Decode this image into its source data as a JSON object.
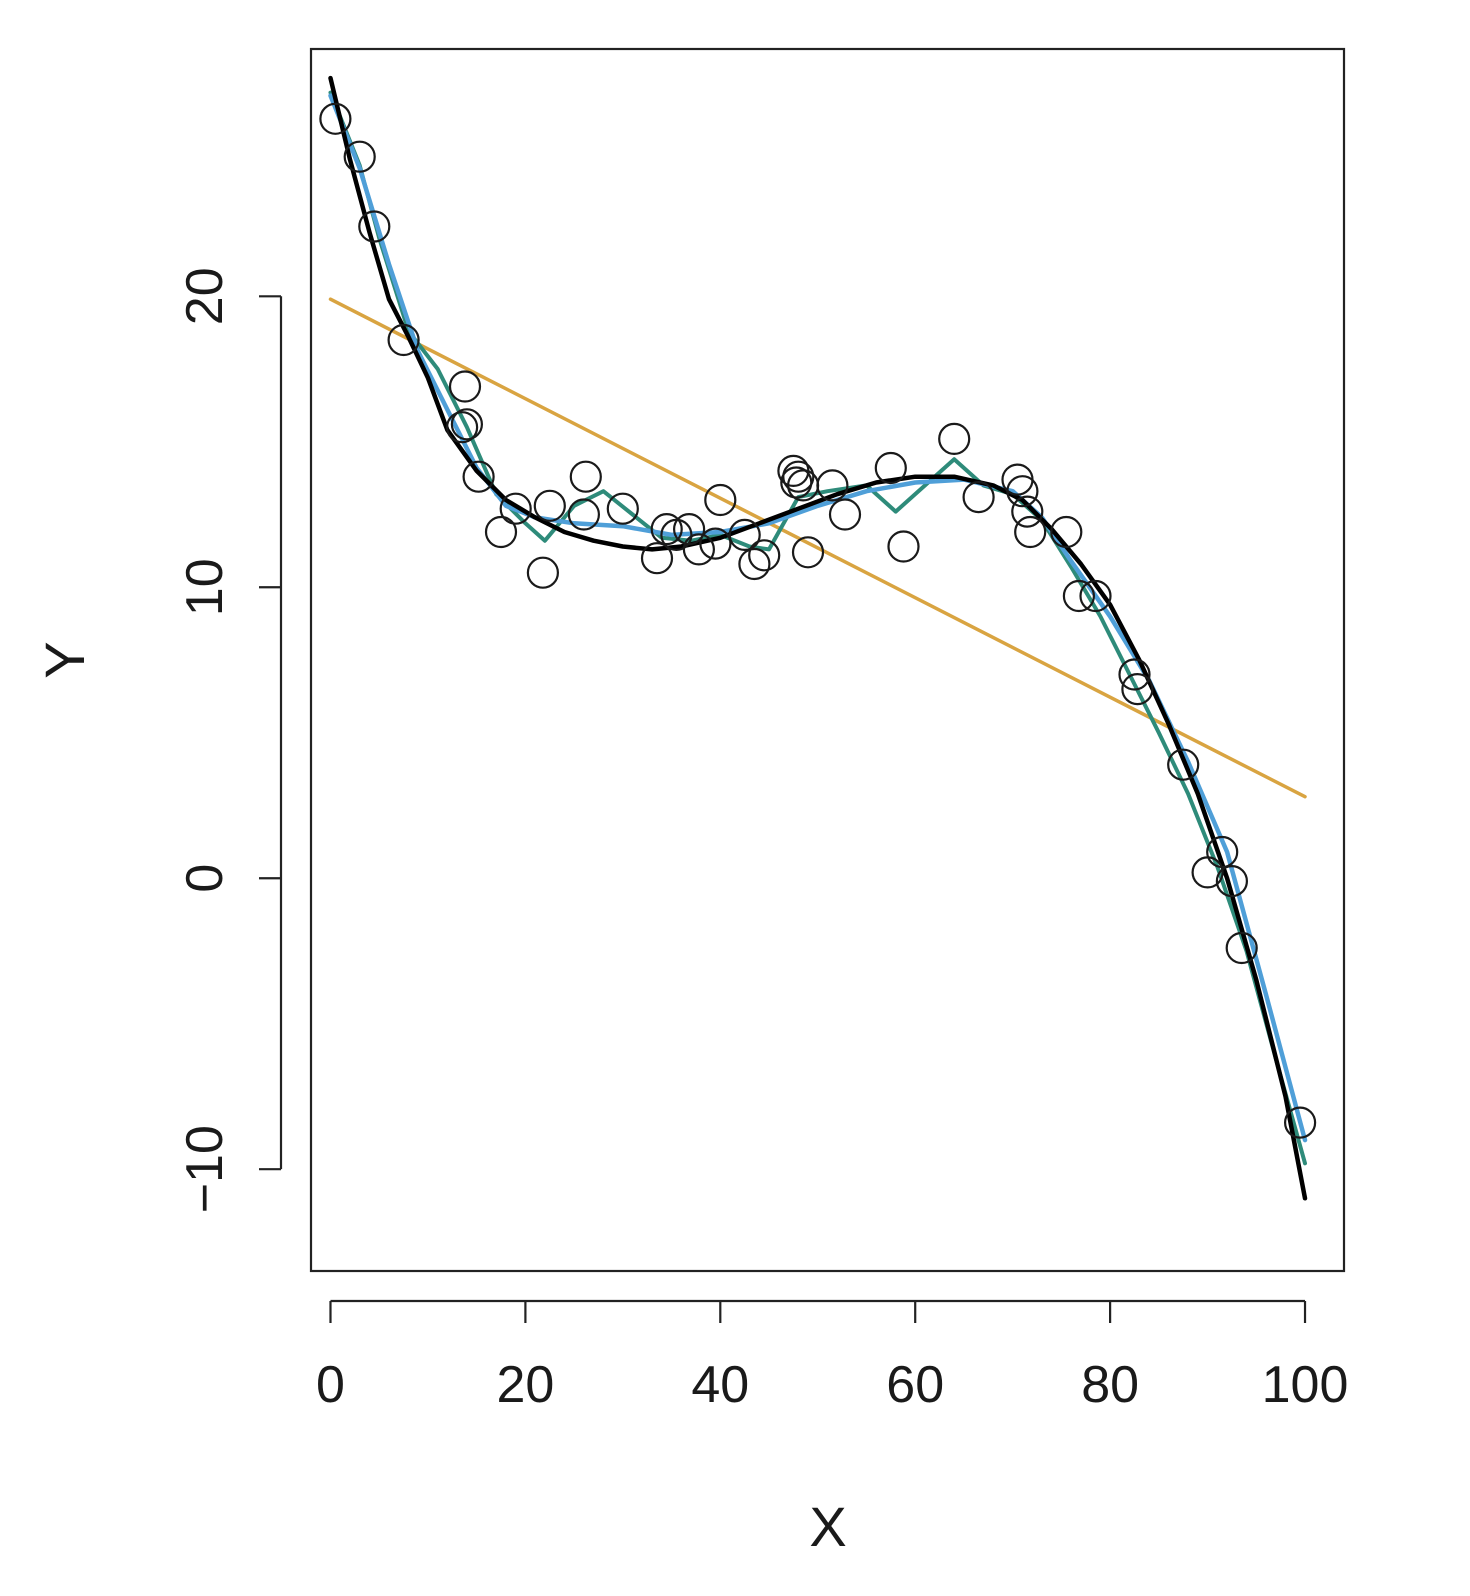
{
  "chart_data": {
    "type": "scatter",
    "title": "",
    "xlabel": "X",
    "ylabel": "Y",
    "xlim": [
      -2,
      104
    ],
    "ylim": [
      -13.5,
      28.5
    ],
    "x_ticks": [
      0,
      20,
      40,
      60,
      80,
      100
    ],
    "y_ticks": [
      -10,
      0,
      10,
      20
    ],
    "grid": false,
    "legend": "none",
    "points": [
      {
        "x": 0.5,
        "y": 26.1
      },
      {
        "x": 3.0,
        "y": 24.8
      },
      {
        "x": 4.5,
        "y": 22.4
      },
      {
        "x": 7.5,
        "y": 18.5
      },
      {
        "x": 13.8,
        "y": 16.9
      },
      {
        "x": 13.5,
        "y": 15.5
      },
      {
        "x": 14.0,
        "y": 15.6
      },
      {
        "x": 15.2,
        "y": 13.8
      },
      {
        "x": 17.5,
        "y": 11.9
      },
      {
        "x": 19.0,
        "y": 12.7
      },
      {
        "x": 21.8,
        "y": 10.5
      },
      {
        "x": 22.5,
        "y": 12.8
      },
      {
        "x": 26.2,
        "y": 13.8
      },
      {
        "x": 26.0,
        "y": 12.5
      },
      {
        "x": 30.0,
        "y": 12.7
      },
      {
        "x": 33.5,
        "y": 11.0
      },
      {
        "x": 34.5,
        "y": 12.0
      },
      {
        "x": 35.5,
        "y": 11.8
      },
      {
        "x": 36.8,
        "y": 12.0
      },
      {
        "x": 37.8,
        "y": 11.3
      },
      {
        "x": 39.5,
        "y": 11.5
      },
      {
        "x": 40.0,
        "y": 13.0
      },
      {
        "x": 42.5,
        "y": 11.8
      },
      {
        "x": 43.5,
        "y": 10.8
      },
      {
        "x": 44.5,
        "y": 11.1
      },
      {
        "x": 47.5,
        "y": 14.0
      },
      {
        "x": 48.0,
        "y": 13.8
      },
      {
        "x": 48.5,
        "y": 13.5
      },
      {
        "x": 47.8,
        "y": 13.6
      },
      {
        "x": 49.0,
        "y": 11.2
      },
      {
        "x": 51.5,
        "y": 13.5
      },
      {
        "x": 52.8,
        "y": 12.5
      },
      {
        "x": 57.5,
        "y": 14.1
      },
      {
        "x": 58.8,
        "y": 11.4
      },
      {
        "x": 64.0,
        "y": 15.1
      },
      {
        "x": 66.5,
        "y": 13.1
      },
      {
        "x": 70.5,
        "y": 13.7
      },
      {
        "x": 71.0,
        "y": 13.3
      },
      {
        "x": 71.5,
        "y": 12.6
      },
      {
        "x": 71.8,
        "y": 11.9
      },
      {
        "x": 75.5,
        "y": 11.9
      },
      {
        "x": 76.8,
        "y": 9.7
      },
      {
        "x": 78.5,
        "y": 9.7
      },
      {
        "x": 82.5,
        "y": 7.0
      },
      {
        "x": 82.8,
        "y": 6.5
      },
      {
        "x": 87.5,
        "y": 3.9
      },
      {
        "x": 90.0,
        "y": 0.2
      },
      {
        "x": 91.5,
        "y": 0.9
      },
      {
        "x": 92.5,
        "y": -0.1
      },
      {
        "x": 93.5,
        "y": -2.4
      },
      {
        "x": 99.5,
        "y": -8.4
      }
    ],
    "series": [
      {
        "style": "linear fit",
        "color": "#D9A441",
        "x": [
          0,
          100
        ],
        "y": [
          19.9,
          2.8
        ]
      },
      {
        "style": "wiggly smooth",
        "color": "#2E8B7A",
        "x": [
          0,
          3,
          5,
          8,
          11,
          14,
          17,
          20,
          22,
          25,
          28,
          31,
          34,
          37,
          40,
          43,
          45,
          48,
          51,
          55,
          58,
          61,
          64,
          67,
          70,
          73,
          76,
          79,
          82,
          85,
          88,
          91,
          94,
          97,
          100
        ],
        "y": [
          27.0,
          24.5,
          22.0,
          18.8,
          17.5,
          15.5,
          13.2,
          12.2,
          11.6,
          12.8,
          13.3,
          12.5,
          11.7,
          11.6,
          11.8,
          11.4,
          11.3,
          13.1,
          13.3,
          13.5,
          12.6,
          13.5,
          14.4,
          13.5,
          13.2,
          12.3,
          10.7,
          9.0,
          7.0,
          5.0,
          2.9,
          0.4,
          -2.5,
          -6.2,
          -9.8
        ]
      },
      {
        "style": "moderate smooth",
        "color": "#4F9FD8",
        "x": [
          0,
          3,
          6,
          9,
          12,
          15,
          18,
          21,
          25,
          30,
          35,
          40,
          45,
          50,
          55,
          60,
          65,
          70,
          73,
          76,
          80,
          84,
          88,
          92,
          96,
          100
        ],
        "y": [
          26.9,
          24.4,
          21.1,
          18.1,
          16.1,
          14.1,
          12.8,
          12.4,
          12.2,
          12.1,
          11.8,
          11.9,
          12.2,
          12.8,
          13.3,
          13.6,
          13.7,
          13.3,
          12.4,
          10.9,
          9.0,
          6.8,
          4.0,
          0.9,
          -4.0,
          -9.0
        ]
      },
      {
        "style": "cubic fit",
        "color": "#000000",
        "x": [
          0,
          2,
          4,
          6,
          8,
          10,
          12,
          15,
          18,
          21,
          24,
          27,
          30,
          33,
          36,
          40,
          44,
          48,
          52,
          56,
          60,
          64,
          68,
          71,
          74,
          77,
          80,
          83,
          86,
          89,
          92,
          95,
          98,
          100
        ],
        "y": [
          27.5,
          24.7,
          22.2,
          19.9,
          18.6,
          17.2,
          15.4,
          14.0,
          13.0,
          12.4,
          11.9,
          11.6,
          11.4,
          11.3,
          11.4,
          11.7,
          12.2,
          12.7,
          13.2,
          13.6,
          13.8,
          13.8,
          13.5,
          13.0,
          12.0,
          10.8,
          9.4,
          7.5,
          5.3,
          2.9,
          0.0,
          -3.5,
          -7.5,
          -11.0
        ]
      }
    ]
  }
}
